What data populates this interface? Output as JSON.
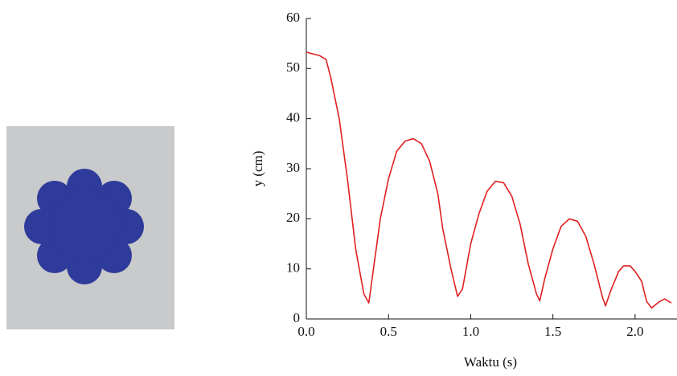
{
  "chart_data": {
    "type": "line",
    "x_label": "Waktu (s)",
    "y_label": "y (cm)",
    "x": [
      0,
      0.03,
      0.08,
      0.12,
      0.15,
      0.2,
      0.25,
      0.3,
      0.35,
      0.38,
      0.4,
      0.45,
      0.5,
      0.55,
      0.6,
      0.65,
      0.7,
      0.75,
      0.8,
      0.83,
      0.88,
      0.92,
      0.95,
      1.0,
      1.05,
      1.1,
      1.15,
      1.2,
      1.25,
      1.3,
      1.35,
      1.4,
      1.42,
      1.45,
      1.5,
      1.55,
      1.6,
      1.65,
      1.7,
      1.75,
      1.8,
      1.82,
      1.85,
      1.9,
      1.93,
      1.97,
      2.0,
      2.04,
      2.07,
      2.1,
      2.15,
      2.18,
      2.22
    ],
    "values": [
      53.3,
      53,
      52.6,
      51.8,
      48,
      40,
      28,
      14,
      5,
      3.2,
      8,
      20,
      28,
      33.5,
      35.5,
      36,
      35,
      31.5,
      25,
      18,
      10,
      4.5,
      6,
      15,
      21,
      25.5,
      27.5,
      27.2,
      24.5,
      19,
      11,
      5,
      3.6,
      8,
      14,
      18.5,
      20,
      19.5,
      16.5,
      11,
      4.5,
      2.6,
      5.5,
      9.5,
      10.6,
      10.6,
      9.5,
      7.5,
      3.5,
      2.2,
      3.5,
      4,
      3.2
    ],
    "color": "#e02020",
    "xlim": [
      0,
      2.25
    ],
    "ylim": [
      0,
      60
    ],
    "xticks": [
      {
        "value": 0,
        "label": "0.0"
      },
      0.5,
      {
        "value": 1,
        "label": "1.0"
      },
      1.5,
      {
        "value": 2,
        "label": "2.0"
      }
    ],
    "yticks": [
      0,
      10,
      20,
      30,
      40,
      50,
      60
    ]
  }
}
